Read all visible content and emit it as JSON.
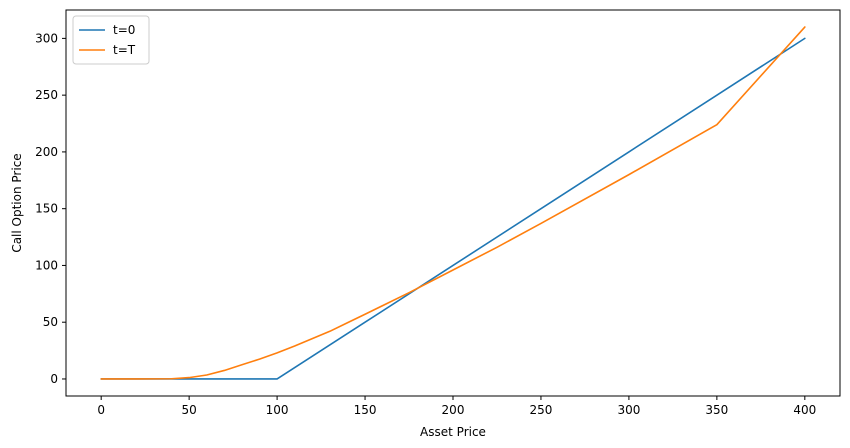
{
  "chart_data": {
    "type": "line",
    "title": "",
    "xlabel": "Asset Price",
    "ylabel": "Call Option Price",
    "xlim": [
      -20,
      420
    ],
    "ylim": [
      -15,
      325
    ],
    "xticks": [
      0,
      50,
      100,
      150,
      200,
      250,
      300,
      350,
      400
    ],
    "yticks": [
      0,
      50,
      100,
      150,
      200,
      250,
      300
    ],
    "grid": false,
    "legend_position": "top-left",
    "series": [
      {
        "name": "t=0",
        "color": "#1f77b4",
        "x": [
          0,
          20,
          40,
          60,
          80,
          100,
          150,
          200,
          250,
          300,
          350,
          400
        ],
        "y": [
          0,
          0,
          0,
          0,
          0,
          0,
          50,
          100,
          150,
          200,
          250,
          300
        ]
      },
      {
        "name": "t=T",
        "color": "#ff7f0e",
        "x": [
          0,
          20,
          40,
          50,
          60,
          70,
          80,
          90,
          100,
          110,
          120,
          130,
          140,
          150,
          175,
          200,
          225,
          250,
          300,
          350,
          400
        ],
        "y": [
          0,
          0,
          0.2,
          1.2,
          3.5,
          7.5,
          12.5,
          17.5,
          23,
          29,
          35.5,
          42,
          49.5,
          57,
          76,
          96,
          116,
          137,
          180,
          224,
          310
        ]
      }
    ]
  }
}
